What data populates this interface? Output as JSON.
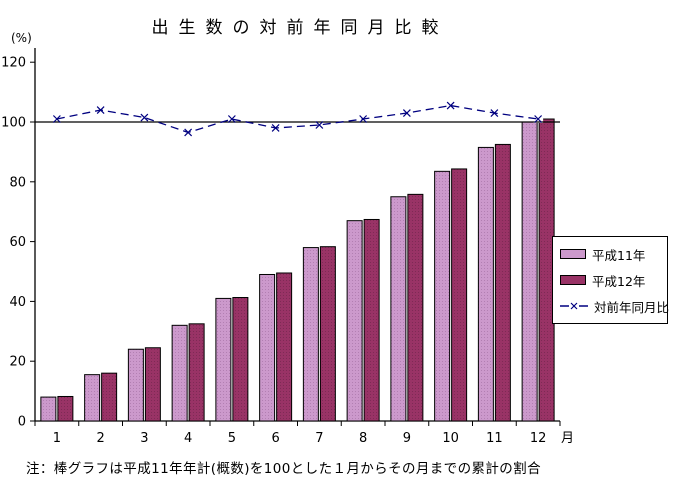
{
  "title": "出生数の対前年同月比較",
  "y_axis_unit": "(%)",
  "x_axis_unit": "月",
  "note": "注：棒グラフは平成11年年計(概数)を100とした１月からその月までの累計の割合",
  "colors": {
    "bar_h11": "#CC99CC",
    "bar_h12": "#993366",
    "line": "#000080",
    "axis": "#000000"
  },
  "legend": {
    "items": [
      {
        "label": "平成11年",
        "type": "bar",
        "color": "#CC99CC"
      },
      {
        "label": "平成12年",
        "type": "bar",
        "color": "#993366"
      },
      {
        "label": "対前年同月比",
        "type": "line",
        "color": "#000080"
      }
    ]
  },
  "chart_data": {
    "type": "bar",
    "title": "出生数の対前年同月比較",
    "xlabel": "月",
    "ylabel": "(%)",
    "categories": [
      "1",
      "2",
      "3",
      "4",
      "5",
      "6",
      "7",
      "8",
      "9",
      "10",
      "11",
      "12"
    ],
    "series": [
      {
        "name": "平成11年",
        "kind": "bar",
        "color": "#CC99CC",
        "values": [
          8,
          15.5,
          24,
          32,
          41,
          49,
          58,
          67,
          75,
          83.5,
          91.5,
          100
        ]
      },
      {
        "name": "平成12年",
        "kind": "bar",
        "color": "#993366",
        "values": [
          8.2,
          16,
          24.5,
          32.5,
          41.3,
          49.5,
          58.3,
          67.4,
          75.8,
          84.3,
          92.5,
          101
        ]
      },
      {
        "name": "対前年同月比",
        "kind": "line",
        "color": "#000080",
        "values": [
          101,
          104,
          101.5,
          96.5,
          101,
          98,
          99,
          101,
          103,
          105.5,
          103,
          101
        ]
      }
    ],
    "ylim": [
      0,
      120
    ],
    "ytick_step": 20,
    "reference_line": 100,
    "grid": false,
    "legend_position": "right",
    "note": "注：棒グラフは平成11年年計(概数)を100とした１月からその月までの累計の割合"
  }
}
